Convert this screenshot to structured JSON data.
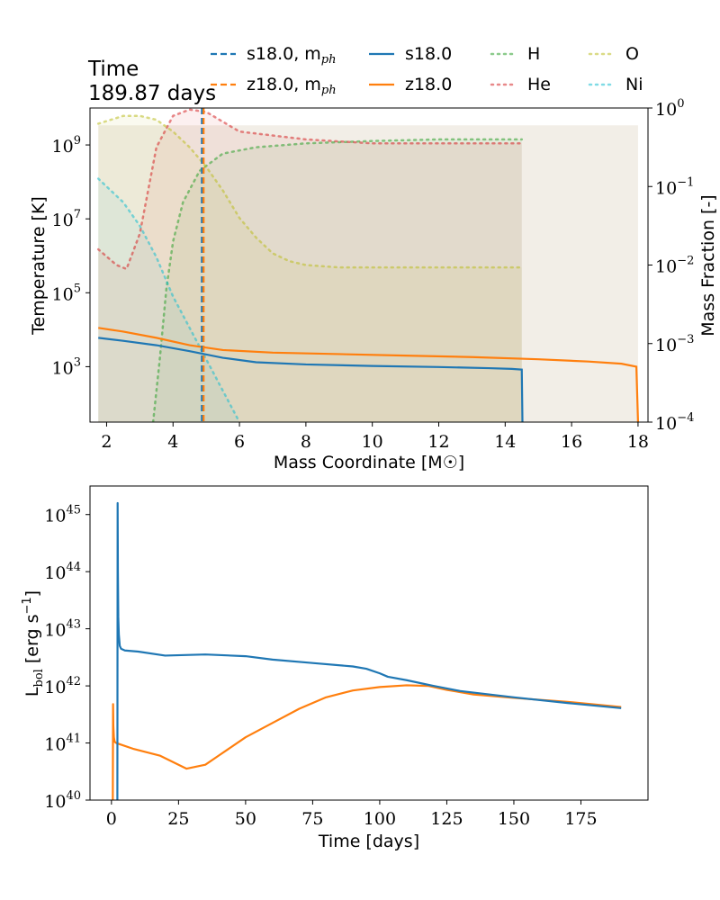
{
  "header": {
    "time_label": "Time",
    "time_value": "189.87 days"
  },
  "colors": {
    "s18": "#1f77b4",
    "z18": "#ff7f0e",
    "H": "#2ca02c",
    "He": "#d62728",
    "O": "#bcbd22",
    "Ni": "#17becf",
    "shade": "#e6ddd0"
  },
  "chart_data": [
    {
      "type": "line",
      "title": "",
      "xlabel": "Mass Coordinate [M☉]",
      "ylabel": "Temperature [K]",
      "ylabel_right": "Mass Fraction [-]",
      "xlim": [
        1.5,
        18.3
      ],
      "ylim_log10": [
        1.5,
        10.0
      ],
      "ylim_right_log10": [
        -4,
        0
      ],
      "x_ticks": [
        "2",
        "4",
        "6",
        "8",
        "10",
        "12",
        "14",
        "16",
        "18"
      ],
      "y_ticks": [
        {
          "base": "10",
          "exp": "3"
        },
        {
          "base": "10",
          "exp": "5"
        },
        {
          "base": "10",
          "exp": "7"
        },
        {
          "base": "10",
          "exp": "9"
        }
      ],
      "y_ticks_right": [
        {
          "base": "10",
          "exp": "−4"
        },
        {
          "base": "10",
          "exp": "−3"
        },
        {
          "base": "10",
          "exp": "−2"
        },
        {
          "base": "10",
          "exp": "−1"
        },
        {
          "base": "10",
          "exp": "0"
        }
      ],
      "legend": [
        {
          "key": "s18ph",
          "label": "s18.0, m",
          "sub": "ph",
          "style": "dashed",
          "color": "#1f77b4"
        },
        {
          "key": "s18",
          "label": "s18.0",
          "sub": "",
          "style": "solid",
          "color": "#1f77b4"
        },
        {
          "key": "H",
          "label": "H",
          "sub": "",
          "style": "dotted",
          "color": "#2ca02c"
        },
        {
          "key": "O",
          "label": "O",
          "sub": "",
          "style": "dotted",
          "color": "#bcbd22"
        },
        {
          "key": "z18ph",
          "label": "z18.0, m",
          "sub": "ph",
          "style": "dashed",
          "color": "#ff7f0e"
        },
        {
          "key": "z18",
          "label": "z18.0",
          "sub": "",
          "style": "solid",
          "color": "#ff7f0e"
        },
        {
          "key": "He",
          "label": "He",
          "sub": "",
          "style": "dotted",
          "color": "#d62728"
        },
        {
          "key": "Ni",
          "label": "Ni",
          "sub": "",
          "style": "dotted",
          "color": "#17becf"
        }
      ],
      "photosphere_mass": {
        "s18.0": 4.87,
        "z18.0": 4.92
      },
      "temperature_series": [
        {
          "name": "s18.0",
          "x": [
            1.75,
            2.5,
            3.5,
            4.5,
            5.5,
            6.5,
            8,
            10,
            12,
            13.5,
            14.2,
            14.5,
            14.52,
            14.54
          ],
          "log10_T": [
            3.78,
            3.7,
            3.58,
            3.42,
            3.24,
            3.12,
            3.06,
            3.02,
            2.99,
            2.96,
            2.94,
            2.92,
            1.5,
            1.5
          ]
        },
        {
          "name": "z18.0",
          "x": [
            1.75,
            2.5,
            3.5,
            4.5,
            5.5,
            7,
            9,
            11,
            13,
            15,
            16.5,
            17.5,
            17.95,
            18.0,
            18.02
          ],
          "log10_T": [
            4.05,
            3.95,
            3.78,
            3.58,
            3.45,
            3.38,
            3.34,
            3.3,
            3.26,
            3.2,
            3.14,
            3.08,
            3.0,
            1.5,
            1.5
          ]
        }
      ],
      "mass_fraction_series": [
        {
          "name": "H",
          "x": [
            3.4,
            3.6,
            3.8,
            4.0,
            4.3,
            4.8,
            5.5,
            6.5,
            8,
            10,
            12,
            14.5
          ],
          "log10_X": [
            -4,
            -3.2,
            -2.3,
            -1.7,
            -1.2,
            -0.8,
            -0.58,
            -0.5,
            -0.45,
            -0.42,
            -0.4,
            -0.4
          ]
        },
        {
          "name": "He",
          "x": [
            1.75,
            2.3,
            2.6,
            3.0,
            3.5,
            4.0,
            4.5,
            5.0,
            6,
            8,
            10,
            12,
            14.5
          ],
          "log10_X": [
            -1.8,
            -2.0,
            -2.05,
            -1.6,
            -0.5,
            -0.1,
            -0.02,
            -0.05,
            -0.3,
            -0.4,
            -0.45,
            -0.45,
            -0.45
          ]
        },
        {
          "name": "O",
          "x": [
            1.75,
            2.5,
            3.0,
            3.5,
            4.0,
            4.5,
            5.0,
            5.5,
            6.0,
            6.5,
            7.0,
            7.5,
            8.0,
            9.0,
            10,
            12,
            14.5
          ],
          "log10_X": [
            -0.2,
            -0.1,
            -0.1,
            -0.15,
            -0.3,
            -0.5,
            -0.75,
            -1.05,
            -1.4,
            -1.65,
            -1.85,
            -1.95,
            -2.0,
            -2.03,
            -2.03,
            -2.03,
            -2.03
          ]
        },
        {
          "name": "Ni",
          "x": [
            1.75,
            2.5,
            3.0,
            3.5,
            4.0,
            4.5,
            5.0,
            5.5,
            6.0
          ],
          "log10_X": [
            -0.9,
            -1.2,
            -1.5,
            -1.9,
            -2.4,
            -2.8,
            -3.2,
            -3.6,
            -4.0
          ]
        }
      ]
    },
    {
      "type": "line",
      "title": "",
      "xlabel": "Time [days]",
      "ylabel": "L",
      "ylabel_sub": "bol",
      "ylabel_units": "[erg s",
      "ylabel_units_exp": "−1",
      "ylabel_close": "]",
      "xlim": [
        -8,
        200
      ],
      "ylim_log10": [
        40,
        45.5
      ],
      "x_ticks": [
        "0",
        "25",
        "50",
        "75",
        "100",
        "125",
        "150",
        "175"
      ],
      "y_ticks": [
        {
          "base": "10",
          "exp": "40"
        },
        {
          "base": "10",
          "exp": "41"
        },
        {
          "base": "10",
          "exp": "42"
        },
        {
          "base": "10",
          "exp": "43"
        },
        {
          "base": "10",
          "exp": "44"
        },
        {
          "base": "10",
          "exp": "45"
        }
      ],
      "series": [
        {
          "name": "s18.0",
          "x": [
            2.2,
            2.3,
            2.4,
            2.55,
            2.75,
            3.1,
            3.6,
            5,
            10,
            20,
            35,
            50,
            60,
            75,
            90,
            95,
            100,
            103,
            110,
            120,
            130,
            150,
            170,
            190
          ],
          "log10_L": [
            40,
            45.2,
            44.0,
            43.2,
            42.9,
            42.7,
            42.65,
            42.62,
            42.6,
            42.53,
            42.55,
            42.52,
            42.46,
            42.4,
            42.34,
            42.3,
            42.22,
            42.16,
            42.1,
            42.0,
            41.91,
            41.8,
            41.7,
            41.61
          ]
        },
        {
          "name": "z18.0",
          "x": [
            0.5,
            0.6,
            0.7,
            0.9,
            1.2,
            1.8,
            3,
            8,
            18,
            28,
            35,
            40,
            50,
            60,
            70,
            80,
            90,
            100,
            110,
            118,
            125,
            135,
            150,
            170,
            190
          ],
          "log10_L": [
            40,
            41.68,
            41.3,
            41.1,
            41.02,
            41.0,
            40.98,
            40.9,
            40.78,
            40.55,
            40.62,
            40.78,
            41.1,
            41.35,
            41.6,
            41.8,
            41.92,
            41.98,
            42.01,
            42.0,
            41.93,
            41.85,
            41.79,
            41.72,
            41.63
          ]
        }
      ]
    }
  ]
}
